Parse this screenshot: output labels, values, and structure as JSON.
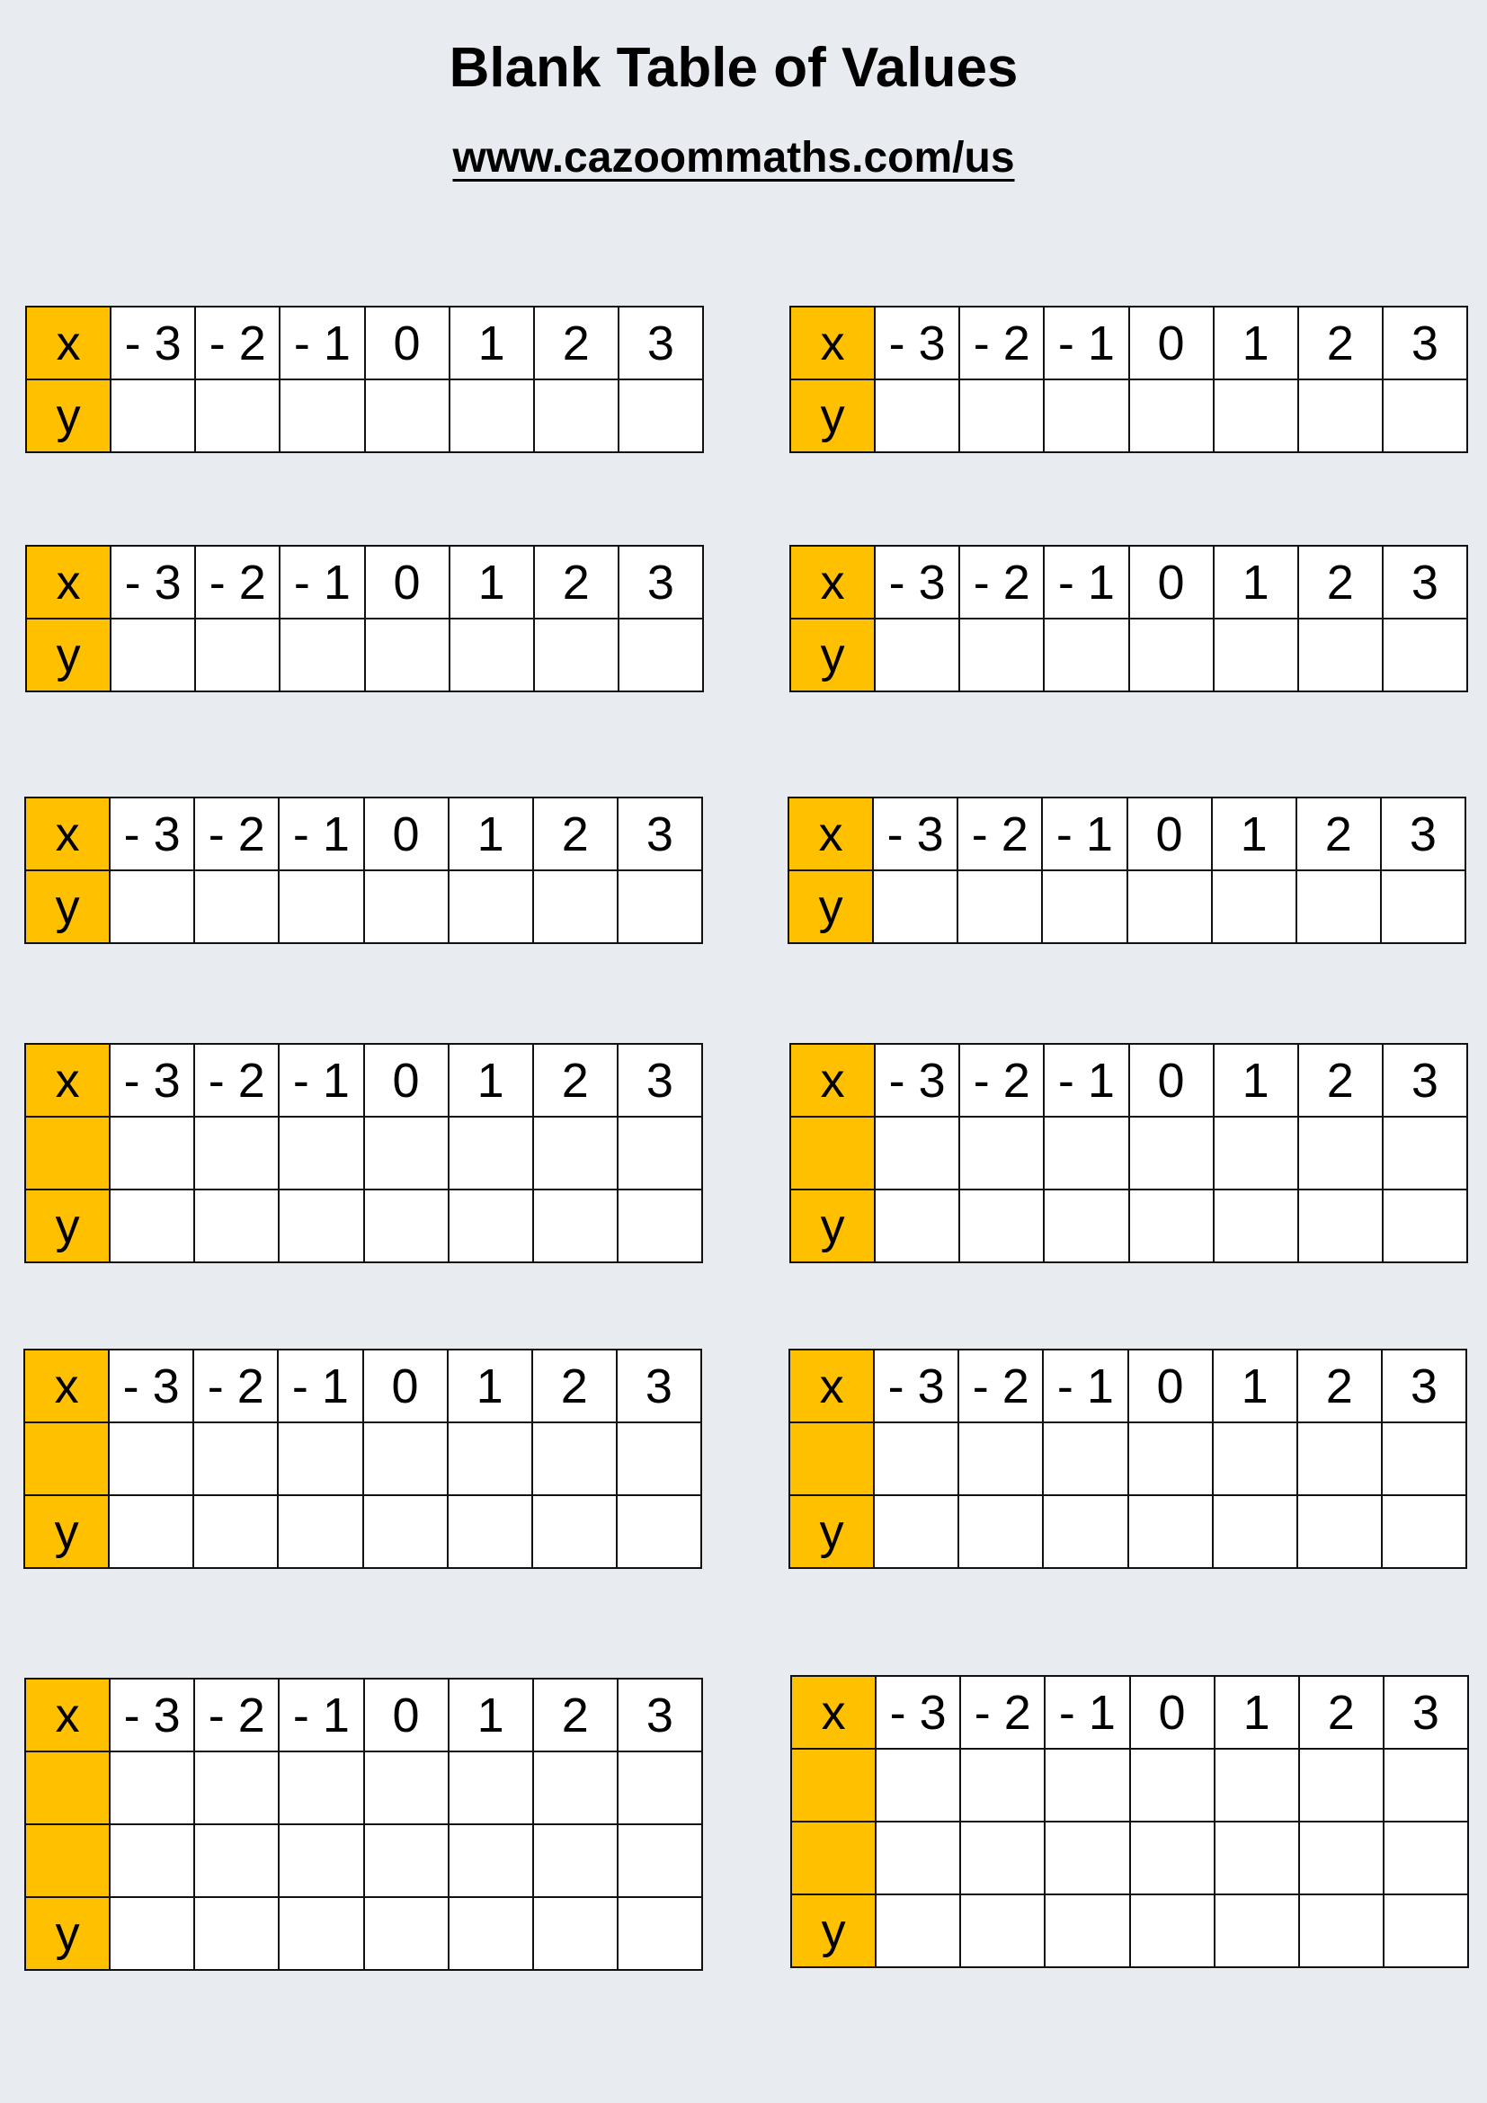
{
  "header": {
    "title": "Blank Table of Values",
    "url": "www.cazoommaths.com/us"
  },
  "colors": {
    "background": "#e8ebf0",
    "label_fill": "#ffc000"
  },
  "tables": [
    {
      "row_labels": [
        "x",
        "y"
      ],
      "x_values": [
        "- 3",
        "- 2",
        "- 1",
        "0",
        "1",
        "2",
        "3"
      ]
    },
    {
      "row_labels": [
        "x",
        "y"
      ],
      "x_values": [
        "- 3",
        "- 2",
        "- 1",
        "0",
        "1",
        "2",
        "3"
      ]
    },
    {
      "row_labels": [
        "x",
        "y"
      ],
      "x_values": [
        "- 3",
        "- 2",
        "- 1",
        "0",
        "1",
        "2",
        "3"
      ]
    },
    {
      "row_labels": [
        "x",
        "y"
      ],
      "x_values": [
        "- 3",
        "- 2",
        "- 1",
        "0",
        "1",
        "2",
        "3"
      ]
    },
    {
      "row_labels": [
        "x",
        "y"
      ],
      "x_values": [
        "- 3",
        "- 2",
        "- 1",
        "0",
        "1",
        "2",
        "3"
      ]
    },
    {
      "row_labels": [
        "x",
        "y"
      ],
      "x_values": [
        "- 3",
        "- 2",
        "- 1",
        "0",
        "1",
        "2",
        "3"
      ]
    },
    {
      "row_labels": [
        "x",
        "",
        "y"
      ],
      "x_values": [
        "- 3",
        "- 2",
        "- 1",
        "0",
        "1",
        "2",
        "3"
      ]
    },
    {
      "row_labels": [
        "x",
        "",
        "y"
      ],
      "x_values": [
        "- 3",
        "- 2",
        "- 1",
        "0",
        "1",
        "2",
        "3"
      ]
    },
    {
      "row_labels": [
        "x",
        "",
        "y"
      ],
      "x_values": [
        "- 3",
        "- 2",
        "- 1",
        "0",
        "1",
        "2",
        "3"
      ]
    },
    {
      "row_labels": [
        "x",
        "",
        "y"
      ],
      "x_values": [
        "- 3",
        "- 2",
        "- 1",
        "0",
        "1",
        "2",
        "3"
      ]
    },
    {
      "row_labels": [
        "x",
        "",
        "",
        "y"
      ],
      "x_values": [
        "- 3",
        "- 2",
        "- 1",
        "0",
        "1",
        "2",
        "3"
      ]
    },
    {
      "row_labels": [
        "x",
        "",
        "",
        "y"
      ],
      "x_values": [
        "- 3",
        "- 2",
        "- 1",
        "0",
        "1",
        "2",
        "3"
      ]
    }
  ]
}
